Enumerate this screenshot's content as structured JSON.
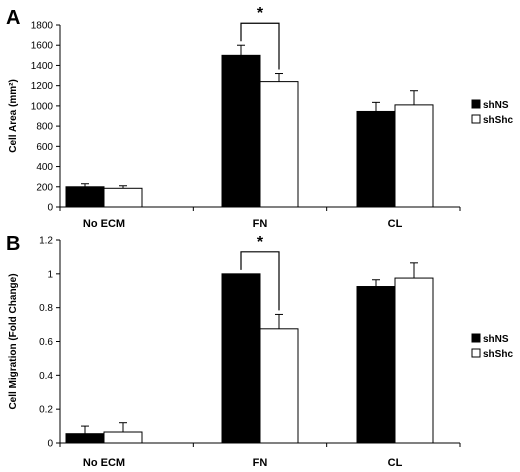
{
  "chart_data": [
    {
      "panel": "A",
      "type": "bar",
      "categories": [
        "No ECM",
        "FN",
        "CL"
      ],
      "series": [
        {
          "name": "shNS",
          "values": [
            200,
            1500,
            945
          ],
          "errors": [
            30,
            100,
            90
          ],
          "color": "#000000"
        },
        {
          "name": "shShc",
          "values": [
            185,
            1240,
            1010
          ],
          "errors": [
            25,
            80,
            140
          ],
          "color": "#ffffff"
        }
      ],
      "ylabel": "Cell Area (mm²)",
      "ylim": [
        0,
        1800
      ],
      "yticks": [
        "0",
        "200",
        "400",
        "600",
        "800",
        "1000",
        "1200",
        "1400",
        "1600",
        "1800"
      ],
      "significance": {
        "category": "FN",
        "label": "*"
      },
      "legend": "right"
    },
    {
      "panel": "B",
      "type": "bar",
      "categories": [
        "No ECM",
        "FN",
        "CL"
      ],
      "series": [
        {
          "name": "shNS",
          "values": [
            0.055,
            1.0,
            0.925
          ],
          "errors": [
            0.045,
            0,
            0.04
          ],
          "color": "#000000"
        },
        {
          "name": "shShc",
          "values": [
            0.065,
            0.675,
            0.975
          ],
          "errors": [
            0.055,
            0.085,
            0.09
          ],
          "color": "#ffffff"
        }
      ],
      "ylabel": "Cell Migration (Fold Change)",
      "ylim": [
        0,
        1.2
      ],
      "yticks": [
        "0",
        "0.2",
        "0.4",
        "0.6",
        "0.8",
        "1",
        "1.2"
      ],
      "significance": {
        "category": "FN",
        "label": "*"
      },
      "legend": "right"
    }
  ]
}
